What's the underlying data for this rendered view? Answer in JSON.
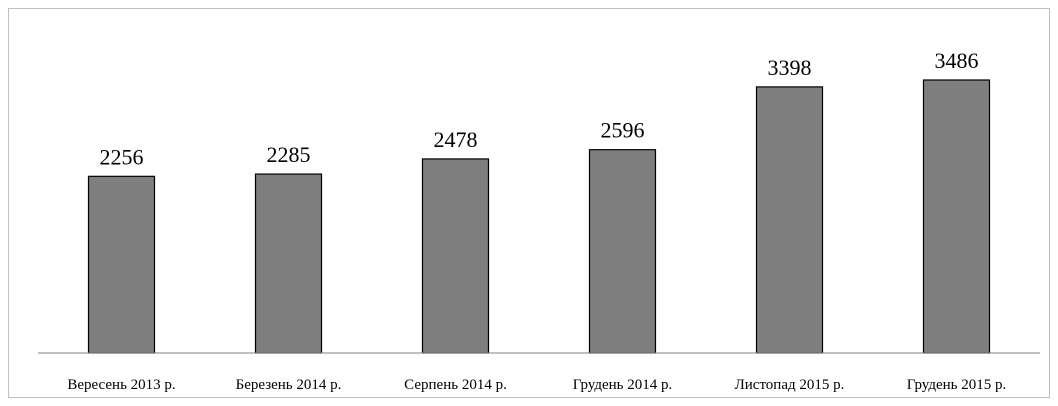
{
  "chart_data": {
    "type": "bar",
    "categories": [
      "Вересень 2013 р.",
      "Березень 2014 р.",
      "Серпень 2014 р.",
      "Грудень 2014 р.",
      "Листопад 2015 р.",
      "Грудень 2015 р."
    ],
    "values": [
      2256,
      2285,
      2478,
      2596,
      3398,
      3486
    ],
    "color": "#7f7f7f"
  }
}
